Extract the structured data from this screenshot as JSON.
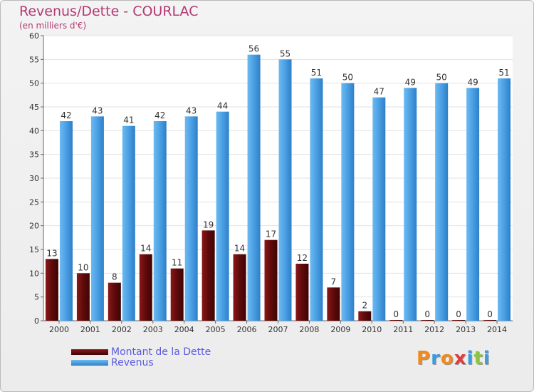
{
  "title": "Revenus/Dette - COURLAC",
  "subtitle": "(en milliers d'€)",
  "logo": "Proxiti",
  "colors": {
    "dette": "#6d0e0e",
    "revenus": "#4a9fe3",
    "title": "#b23a73",
    "legend_text": "#5a5ae0"
  },
  "chart_data": {
    "type": "bar",
    "categories": [
      "2000",
      "2001",
      "2002",
      "2003",
      "2004",
      "2005",
      "2006",
      "2007",
      "2008",
      "2009",
      "2010",
      "2011",
      "2012",
      "2013",
      "2014"
    ],
    "series": [
      {
        "name": "Montant de la Dette",
        "values": [
          13,
          10,
          8,
          14,
          11,
          19,
          14,
          17,
          12,
          7,
          2,
          0,
          0,
          0,
          0
        ]
      },
      {
        "name": "Revenus",
        "values": [
          42,
          43,
          41,
          42,
          43,
          44,
          56,
          55,
          51,
          50,
          47,
          49,
          50,
          49,
          51
        ]
      }
    ],
    "ylim": [
      0,
      60
    ],
    "yticks": [
      0,
      5,
      10,
      15,
      20,
      25,
      30,
      35,
      40,
      45,
      50,
      55,
      60
    ],
    "grid": true,
    "legend_position": "bottom-left"
  }
}
